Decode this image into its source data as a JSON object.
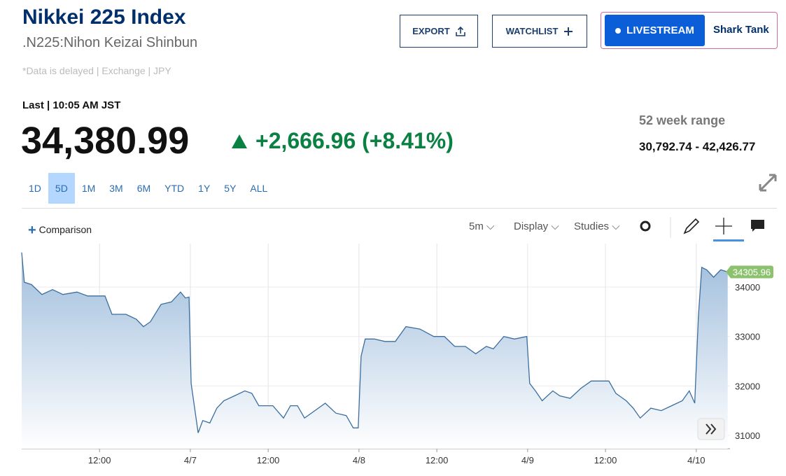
{
  "header": {
    "title": "Nikkei 225 Index",
    "subtitle": ".N225:Nihon Keizai Shinbun",
    "disclaimer": "*Data is delayed | Exchange | JPY"
  },
  "buttons": {
    "export": "EXPORT",
    "watchlist": "WATCHLIST",
    "livestream": "LIVESTREAM",
    "show": "Shark Tank"
  },
  "quote": {
    "last_label": "Last | 10:05 AM JST",
    "price": "34,380.99",
    "change": "+2,666.96 (+8.41%)",
    "range_label": "52 week range",
    "range": "30,792.74 - 42,426.77"
  },
  "range_buttons": [
    "1D",
    "5D",
    "1M",
    "3M",
    "6M",
    "YTD",
    "1Y",
    "5Y",
    "ALL"
  ],
  "toolbar": {
    "comparison": "Comparison",
    "interval": "5m",
    "display": "Display",
    "studies": "Studies"
  },
  "chart_data": {
    "type": "line",
    "color": "#3b6e9e",
    "x": [
      0,
      0.1,
      0.38,
      0.78,
      1.19,
      1.59,
      2.13,
      2.54,
      3.21,
      3.48,
      4.02,
      4.42,
      4.69,
      4.96,
      5.37,
      5.77,
      6.12,
      6.31,
      6.45,
      6.53,
      6.8,
      6.98,
      7.25,
      7.52,
      7.79,
      8.2,
      8.6,
      8.87,
      9.14,
      9.68,
      10.09,
      10.36,
      10.63,
      10.9,
      11.3,
      11.7,
      12.11,
      12.51,
      12.78,
      12.97,
      13.08,
      13.24,
      13.59,
      14.0,
      14.4,
      14.81,
      15.35,
      15.88,
      16.29,
      16.69,
      17.1,
      17.5,
      17.91,
      18.18,
      18.58,
      18.99,
      19.47,
      19.58,
      19.8,
      20.06,
      20.47,
      20.74,
      21.14,
      21.55,
      21.95,
      22.63,
      22.9,
      23.3,
      23.57,
      23.84,
      24.25,
      24.65,
      25.05,
      25.46,
      25.73,
      25.94,
      26.08,
      26.21,
      26.4,
      26.67,
      26.94,
      27.21
    ],
    "values": [
      34700,
      34100,
      34050,
      33850,
      33950,
      33850,
      33900,
      33820,
      33820,
      33450,
      33450,
      33350,
      33200,
      33300,
      33650,
      33700,
      33900,
      33780,
      33800,
      32050,
      31050,
      31300,
      31250,
      31550,
      31700,
      31800,
      31900,
      31850,
      31600,
      31600,
      31350,
      31600,
      31600,
      31350,
      31500,
      31650,
      31450,
      31400,
      31150,
      31150,
      32600,
      32950,
      32950,
      32900,
      32900,
      33200,
      33150,
      33000,
      33000,
      32800,
      32800,
      32650,
      32800,
      32750,
      33000,
      32950,
      33000,
      32050,
      31900,
      31700,
      31900,
      31800,
      31750,
      31950,
      32100,
      32100,
      31850,
      31700,
      31550,
      31350,
      31550,
      31500,
      31600,
      31700,
      31900,
      31650,
      33400,
      34400,
      34350,
      34200,
      34350,
      34305.96
    ],
    "xlim": [
      0,
      27.3
    ],
    "xticks": [
      {
        "value": 3,
        "label": "12:00"
      },
      {
        "value": 6.5,
        "label": "4/7"
      },
      {
        "value": 9.5,
        "label": "12:00"
      },
      {
        "value": 13,
        "label": "4/8"
      },
      {
        "value": 16,
        "label": "12:00"
      },
      {
        "value": 19.5,
        "label": "4/9"
      },
      {
        "value": 22.5,
        "label": "12:00"
      },
      {
        "value": 26,
        "label": "4/10"
      }
    ],
    "ylim": [
      30730,
      34880
    ],
    "yticks": [
      31000,
      32000,
      33000,
      34000
    ],
    "grid": true
  }
}
